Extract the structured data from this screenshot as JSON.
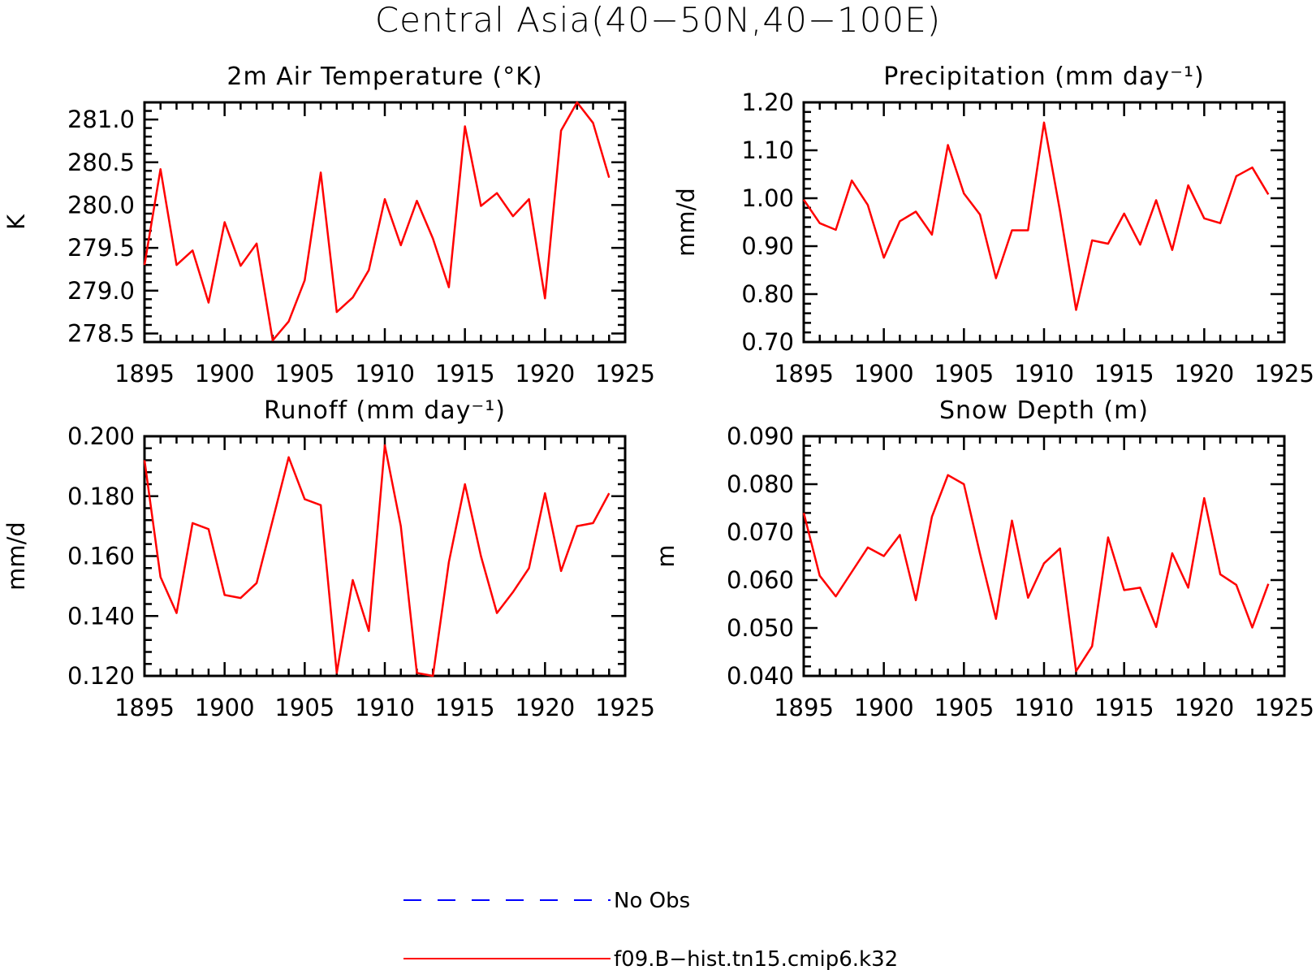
{
  "title": "Central Asia(40−50N,40−100E)",
  "legend": [
    {
      "label": "No Obs",
      "color": "#0000ff",
      "style": "dashed"
    },
    {
      "label": "f09.B−hist.tn15.cmip6.k32",
      "color": "#ff0000",
      "style": "solid"
    }
  ],
  "chart_data": [
    {
      "type": "line",
      "title": "2m Air Temperature (°K)",
      "ylabel": "K",
      "xlim": [
        1895,
        1925
      ],
      "ylim": [
        278.4,
        281.2
      ],
      "xticks": [
        1895,
        1900,
        1905,
        1910,
        1915,
        1920,
        1925
      ],
      "yticks": [
        278.5,
        279.0,
        279.5,
        280.0,
        280.5,
        281.0
      ],
      "yticklabels": [
        "278.5",
        "279.0",
        "279.5",
        "280.0",
        "280.5",
        "281.0"
      ],
      "x": [
        1895,
        1896,
        1897,
        1898,
        1899,
        1900,
        1901,
        1902,
        1903,
        1904,
        1905,
        1906,
        1907,
        1908,
        1909,
        1910,
        1911,
        1912,
        1913,
        1914,
        1915,
        1916,
        1917,
        1918,
        1919,
        1920,
        1921,
        1922,
        1923,
        1924
      ],
      "series": [
        {
          "name": "f09.B−hist.tn15.cmip6.k32",
          "color": "#ff0000",
          "values": [
            279.3,
            280.42,
            279.3,
            279.47,
            278.86,
            279.8,
            279.29,
            279.55,
            278.42,
            278.64,
            279.12,
            280.38,
            278.75,
            278.92,
            279.24,
            280.07,
            279.53,
            280.05,
            279.61,
            279.04,
            280.92,
            279.99,
            280.14,
            279.87,
            280.07,
            278.91,
            280.87,
            281.2,
            280.96,
            280.32
          ]
        }
      ]
    },
    {
      "type": "line",
      "title": "Precipitation (mm day⁻¹)",
      "ylabel": "mm/d",
      "xlim": [
        1895,
        1925
      ],
      "ylim": [
        0.7,
        1.2
      ],
      "xticks": [
        1895,
        1900,
        1905,
        1910,
        1915,
        1920,
        1925
      ],
      "yticks": [
        0.7,
        0.8,
        0.9,
        1.0,
        1.1,
        1.2
      ],
      "yticklabels": [
        "0.70",
        "0.80",
        "0.90",
        "1.00",
        "1.10",
        "1.20"
      ],
      "x": [
        1895,
        1896,
        1897,
        1898,
        1899,
        1900,
        1901,
        1902,
        1903,
        1904,
        1905,
        1906,
        1907,
        1908,
        1909,
        1910,
        1911,
        1912,
        1913,
        1914,
        1915,
        1916,
        1917,
        1918,
        1919,
        1920,
        1921,
        1922,
        1923,
        1924
      ],
      "series": [
        {
          "name": "f09.B−hist.tn15.cmip6.k32",
          "color": "#ff0000",
          "values": [
            0.997,
            0.948,
            0.934,
            1.037,
            0.986,
            0.876,
            0.952,
            0.972,
            0.924,
            1.111,
            1.01,
            0.966,
            0.833,
            0.933,
            0.933,
            1.158,
            0.973,
            0.767,
            0.912,
            0.905,
            0.968,
            0.903,
            0.996,
            0.892,
            1.027,
            0.958,
            0.948,
            1.046,
            1.064,
            1.008
          ]
        }
      ]
    },
    {
      "type": "line",
      "title": "Runoff (mm day⁻¹)",
      "ylabel": "mm/d",
      "xlim": [
        1895,
        1925
      ],
      "ylim": [
        0.12,
        0.2
      ],
      "xticks": [
        1895,
        1900,
        1905,
        1910,
        1915,
        1920,
        1925
      ],
      "yticks": [
        0.12,
        0.14,
        0.16,
        0.18,
        0.2
      ],
      "yticklabels": [
        "0.120",
        "0.140",
        "0.160",
        "0.180",
        "0.200"
      ],
      "x": [
        1895,
        1896,
        1897,
        1898,
        1899,
        1900,
        1901,
        1902,
        1903,
        1904,
        1905,
        1906,
        1907,
        1908,
        1909,
        1910,
        1911,
        1912,
        1913,
        1914,
        1915,
        1916,
        1917,
        1918,
        1919,
        1920,
        1921,
        1922,
        1923,
        1924
      ],
      "series": [
        {
          "name": "f09.B−hist.tn15.cmip6.k32",
          "color": "#ff0000",
          "values": [
            0.192,
            0.153,
            0.141,
            0.171,
            0.169,
            0.147,
            0.146,
            0.151,
            0.172,
            0.193,
            0.179,
            0.177,
            0.121,
            0.152,
            0.135,
            0.197,
            0.17,
            0.121,
            0.12,
            0.158,
            0.184,
            0.16,
            0.141,
            0.148,
            0.156,
            0.181,
            0.155,
            0.17,
            0.171,
            0.181
          ]
        }
      ]
    },
    {
      "type": "line",
      "title": "Snow Depth (m)",
      "ylabel": "m",
      "xlim": [
        1895,
        1925
      ],
      "ylim": [
        0.04,
        0.09
      ],
      "xticks": [
        1895,
        1900,
        1905,
        1910,
        1915,
        1920,
        1925
      ],
      "yticks": [
        0.04,
        0.05,
        0.06,
        0.07,
        0.08,
        0.09
      ],
      "yticklabels": [
        "0.040",
        "0.050",
        "0.060",
        "0.070",
        "0.080",
        "0.090"
      ],
      "x": [
        1895,
        1896,
        1897,
        1898,
        1899,
        1900,
        1901,
        1902,
        1903,
        1904,
        1905,
        1906,
        1907,
        1908,
        1909,
        1910,
        1911,
        1912,
        1913,
        1914,
        1915,
        1916,
        1917,
        1918,
        1919,
        1920,
        1921,
        1922,
        1923,
        1924
      ],
      "series": [
        {
          "name": "f09.B−hist.tn15.cmip6.k32",
          "color": "#ff0000",
          "values": [
            0.074,
            0.0609,
            0.0566,
            0.0617,
            0.0668,
            0.065,
            0.0694,
            0.0558,
            0.0732,
            0.0819,
            0.08,
            0.0655,
            0.0519,
            0.0724,
            0.0563,
            0.0635,
            0.0666,
            0.041,
            0.0462,
            0.0689,
            0.0579,
            0.0584,
            0.0502,
            0.0656,
            0.0584,
            0.0771,
            0.0612,
            0.059,
            0.0501,
            0.0592
          ]
        }
      ]
    }
  ]
}
